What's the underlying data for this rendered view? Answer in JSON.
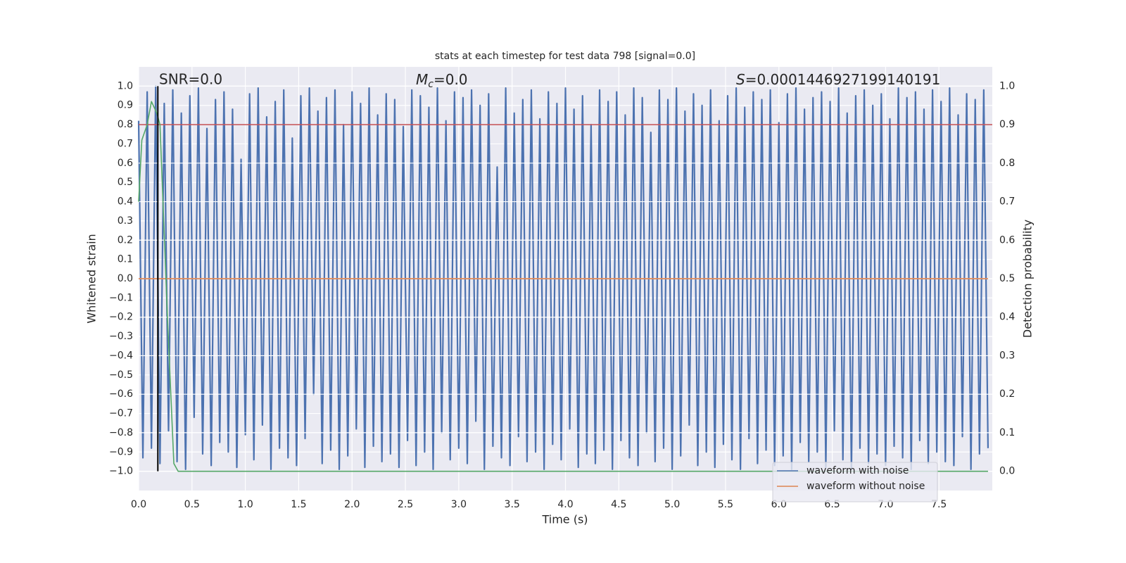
{
  "chart_data": {
    "type": "line",
    "title": "stats at each timestep for test data 798 [signal=0.0]",
    "xlabel": "Time (s)",
    "ylabel": "Whitened strain",
    "y2label": "Detection probability",
    "annotations": [
      "SNR=0.0",
      {
        "symbol": "M",
        "subscript": "c",
        "text": "=0.0"
      },
      {
        "symbol": "S",
        "text": "=0.0001446927199140191"
      }
    ],
    "xlim": [
      0,
      8
    ],
    "ylim": [
      -1.1,
      1.1
    ],
    "y2lim": [
      -0.05,
      1.05
    ],
    "xticks": [
      {
        "value": 0,
        "label": "0.0"
      },
      0.5,
      {
        "value": 1,
        "label": "1.0"
      },
      1.5,
      {
        "value": 2,
        "label": "2.0"
      },
      2.5,
      {
        "value": 3,
        "label": "3.0"
      },
      3.5,
      {
        "value": 4,
        "label": "4.0"
      },
      4.5,
      {
        "value": 5,
        "label": "5.0"
      },
      5.5,
      {
        "value": 6,
        "label": "6.0"
      },
      6.5,
      {
        "value": 7,
        "label": "7.0"
      },
      7.5
    ],
    "yticks": [
      {
        "value": 1,
        "label": "1.0"
      },
      0.9,
      0.8,
      0.7,
      0.6,
      0.5,
      0.4,
      0.3,
      0.2,
      0.1,
      {
        "value": 0,
        "label": "0.0"
      },
      {
        "value": -0.1,
        "label": "−0.1"
      },
      {
        "value": -0.2,
        "label": "−0.2"
      },
      {
        "value": -0.3,
        "label": "−0.3"
      },
      {
        "value": -0.4,
        "label": "−0.4"
      },
      {
        "value": -0.5,
        "label": "−0.5"
      },
      {
        "value": -0.6,
        "label": "−0.6"
      },
      {
        "value": -0.7,
        "label": "−0.7"
      },
      {
        "value": -0.8,
        "label": "−0.8"
      },
      {
        "value": -0.9,
        "label": "−0.9"
      },
      {
        "value": -1,
        "label": "−1.0"
      }
    ],
    "y2ticks": [
      {
        "value": 0,
        "label": "0.0"
      },
      0.1,
      0.2,
      0.3,
      0.4,
      0.5,
      0.6,
      0.7,
      0.8,
      0.9,
      {
        "value": 1,
        "label": "1.0"
      }
    ],
    "grid": true,
    "legend": "lower right",
    "series": [
      {
        "name": "waveform with noise",
        "color": "#4c72b0",
        "x": [
          0,
          0.04,
          0.08,
          0.12,
          0.16,
          0.2,
          0.24,
          0.28,
          0.32,
          0.36,
          0.4,
          0.44,
          0.48,
          0.52,
          0.56,
          0.6,
          0.64,
          0.68,
          0.72,
          0.76,
          0.8,
          0.84,
          0.88,
          0.92,
          0.96,
          1,
          1.04,
          1.08,
          1.12,
          1.16,
          1.2,
          1.24,
          1.28,
          1.32,
          1.36,
          1.4,
          1.44,
          1.48,
          1.52,
          1.56,
          1.6,
          1.64,
          1.68,
          1.72,
          1.76,
          1.8,
          1.84,
          1.88,
          1.92,
          1.96,
          2,
          2.04,
          2.08,
          2.12,
          2.16,
          2.2,
          2.24,
          2.28,
          2.32,
          2.36,
          2.4,
          2.44,
          2.48,
          2.52,
          2.56,
          2.6,
          2.64,
          2.68,
          2.72,
          2.76,
          2.8,
          2.84,
          2.88,
          2.92,
          2.96,
          3,
          3.04,
          3.08,
          3.12,
          3.16,
          3.2,
          3.24,
          3.28,
          3.32,
          3.36,
          3.4,
          3.44,
          3.48,
          3.52,
          3.56,
          3.6,
          3.64,
          3.68,
          3.72,
          3.76,
          3.8,
          3.84,
          3.88,
          3.92,
          3.96,
          4,
          4.04,
          4.08,
          4.12,
          4.16,
          4.2,
          4.24,
          4.28,
          4.32,
          4.36,
          4.4,
          4.44,
          4.48,
          4.52,
          4.56,
          4.6,
          4.64,
          4.68,
          4.72,
          4.76,
          4.8,
          4.84,
          4.88,
          4.92,
          4.96,
          5,
          5.04,
          5.08,
          5.12,
          5.16,
          5.2,
          5.24,
          5.28,
          5.32,
          5.36,
          5.4,
          5.44,
          5.48,
          5.52,
          5.56,
          5.6,
          5.64,
          5.68,
          5.72,
          5.76,
          5.8,
          5.84,
          5.88,
          5.92,
          5.96,
          6,
          6.04,
          6.08,
          6.12,
          6.16,
          6.2,
          6.24,
          6.28,
          6.32,
          6.36,
          6.4,
          6.44,
          6.48,
          6.52,
          6.56,
          6.6,
          6.64,
          6.68,
          6.72,
          6.76,
          6.8,
          6.84,
          6.88,
          6.92,
          6.96,
          7,
          7.04,
          7.08,
          7.12,
          7.16,
          7.2,
          7.24,
          7.28,
          7.32,
          7.36,
          7.4,
          7.44,
          7.48,
          7.52,
          7.56,
          7.6,
          7.64,
          7.68,
          7.72,
          7.76,
          7.8,
          7.84,
          7.88,
          7.92,
          7.96
        ],
        "values": [
          0.82,
          -0.93,
          0.97,
          -0.88,
          1.0,
          -0.96,
          0.91,
          -0.79,
          0.98,
          -0.95,
          0.86,
          -0.99,
          0.95,
          -0.72,
          0.99,
          -0.91,
          0.78,
          -0.97,
          0.93,
          -0.85,
          0.97,
          -0.9,
          0.88,
          -0.98,
          0.62,
          -0.81,
          0.96,
          -0.94,
          0.99,
          -0.76,
          0.84,
          -0.99,
          0.92,
          -0.88,
          0.98,
          -0.93,
          0.73,
          -0.97,
          0.95,
          -0.83,
          0.99,
          -0.6,
          0.87,
          -0.96,
          0.94,
          -0.89,
          0.98,
          -0.99,
          0.8,
          -0.92,
          0.97,
          -0.78,
          0.91,
          -0.98,
          0.99,
          -0.87,
          0.85,
          -0.95,
          0.96,
          -0.91,
          0.93,
          -0.98,
          0.79,
          -0.84,
          0.98,
          -0.97,
          0.95,
          -0.9,
          0.89,
          -0.99,
          0.99,
          -0.8,
          0.82,
          -0.94,
          0.97,
          -0.88,
          0.94,
          -0.96,
          0.98,
          -0.74,
          0.9,
          -0.99,
          0.96,
          -0.87,
          0.58,
          -0.93,
          0.99,
          -0.97,
          0.86,
          -0.82,
          0.93,
          -0.95,
          0.98,
          -0.9,
          0.83,
          -0.99,
          0.97,
          -0.86,
          0.91,
          -0.94,
          0.99,
          -0.78,
          0.88,
          -0.98,
          0.95,
          -0.91,
          0.8,
          -0.96,
          0.98,
          -0.89,
          0.92,
          -0.99,
          0.97,
          -0.84,
          0.85,
          -0.93,
          0.99,
          -0.97,
          0.94,
          -0.8,
          0.76,
          -0.95,
          0.98,
          -0.88,
          0.93,
          -0.99,
          0.99,
          -0.92,
          0.87,
          -0.76,
          0.96,
          -0.97,
          0.9,
          -0.9,
          0.98,
          -0.98,
          0.82,
          -0.86,
          0.95,
          -0.94,
          0.99,
          -0.99,
          0.89,
          -0.83,
          0.97,
          -0.96,
          0.93,
          -0.89,
          0.98,
          -0.97,
          0.81,
          -0.92,
          0.96,
          -0.99,
          0.99,
          -0.85,
          0.88,
          -0.95,
          0.94,
          -0.9,
          0.97,
          -0.98,
          0.92,
          -0.79,
          0.99,
          -0.94,
          0.86,
          -0.99,
          0.95,
          -0.88,
          0.98,
          -0.96,
          0.9,
          -0.91,
          0.96,
          -0.97,
          0.83,
          -0.87,
          0.99,
          -0.93,
          0.94,
          -0.99,
          0.97,
          -0.84,
          0.88,
          -0.96,
          0.98,
          -0.9,
          0.92,
          -0.95,
          0.99,
          -0.97,
          0.85,
          -0.82,
          0.96,
          -0.99,
          0.93,
          -0.91,
          0.98,
          -0.88
        ]
      },
      {
        "name": "waveform without noise",
        "color": "#dd8452",
        "x": [
          0,
          7.96
        ],
        "values": [
          0,
          0
        ]
      },
      {
        "color": "#55a868",
        "axis": "y2",
        "x": [
          0,
          0.03,
          0.08,
          0.12,
          0.17,
          0.2,
          0.27,
          0.33,
          0.37,
          7.96
        ],
        "values": [
          0.7,
          0.86,
          0.9,
          0.96,
          0.93,
          0.9,
          0.4,
          0.02,
          0,
          0
        ]
      }
    ],
    "hlines": [
      {
        "y": 0.9,
        "axis": "y2",
        "color": "#c44e52"
      }
    ],
    "vlines": [
      {
        "x": 0.18,
        "ymin": -1,
        "ymax": 1,
        "color": "#000000"
      }
    ]
  }
}
